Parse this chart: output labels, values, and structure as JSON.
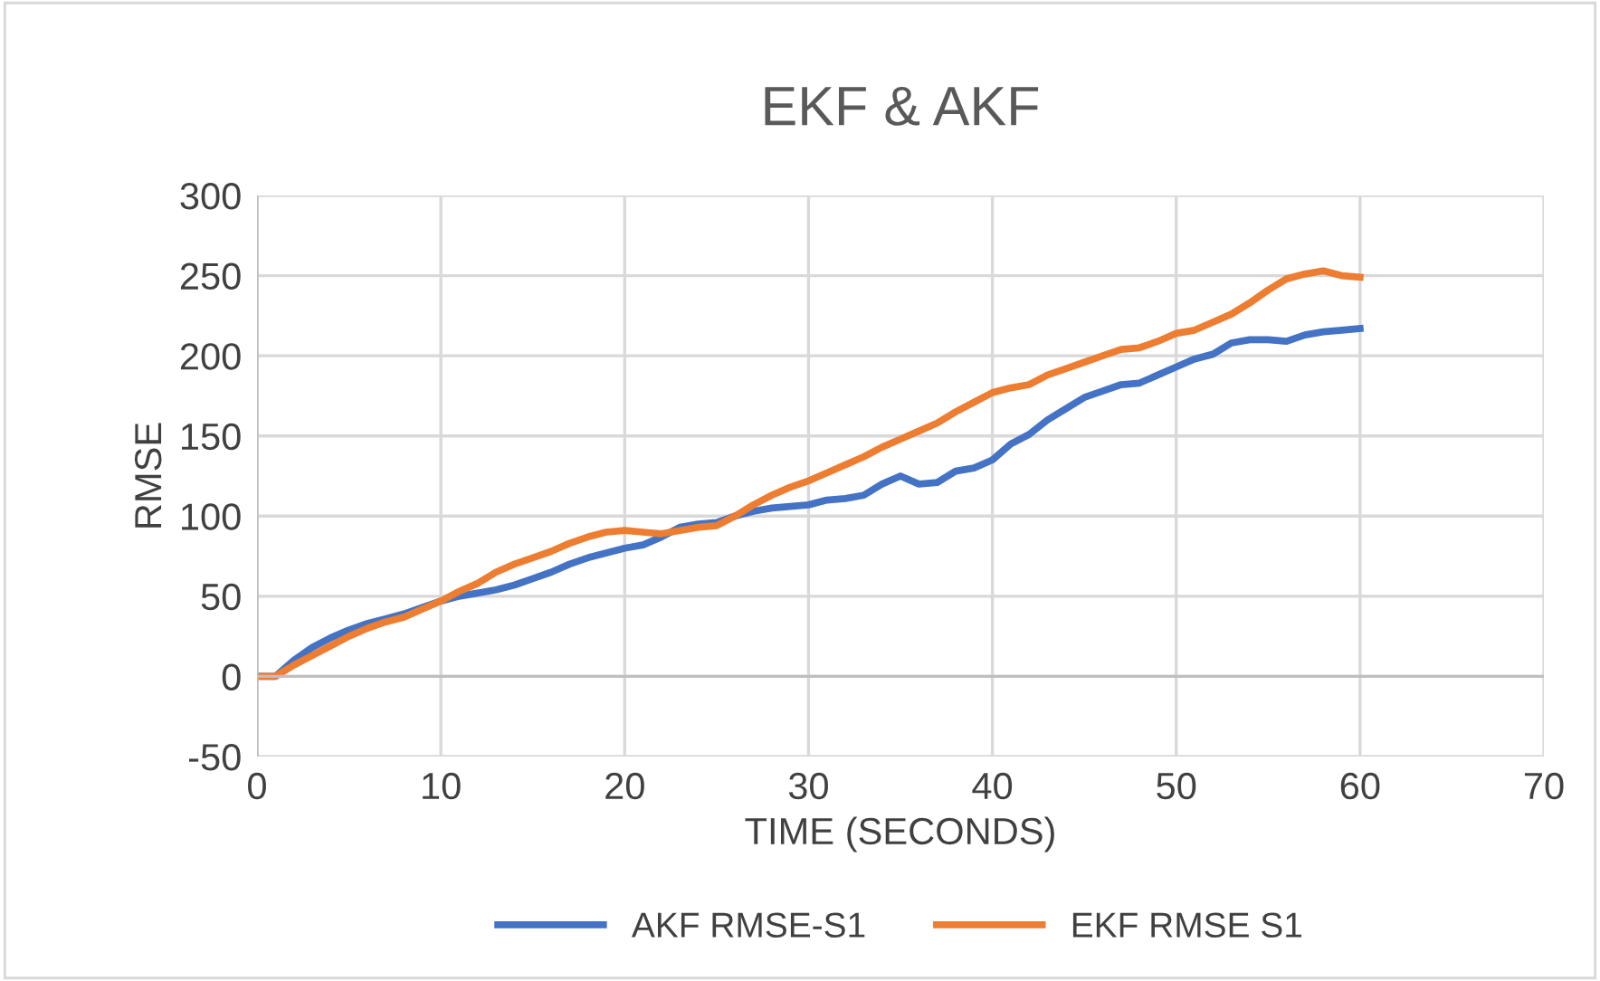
{
  "chart_data": {
    "type": "line",
    "title": "EKF & AKF",
    "xlabel": "TIME (SECONDS)",
    "ylabel": "RMSE",
    "x": [
      0,
      1,
      2,
      3,
      4,
      5,
      6,
      7,
      8,
      9,
      10,
      11,
      12,
      13,
      14,
      15,
      16,
      17,
      18,
      19,
      20,
      21,
      22,
      23,
      24,
      25,
      26,
      27,
      28,
      29,
      30,
      31,
      32,
      33,
      34,
      35,
      36,
      37,
      38,
      39,
      40,
      41,
      42,
      43,
      44,
      45,
      46,
      47,
      48,
      49,
      50,
      51,
      52,
      53,
      54,
      55,
      56,
      57,
      58,
      59,
      60
    ],
    "series": [
      {
        "name": "AKF RMSE-S1",
        "color": "#4472c4",
        "values": [
          0,
          0,
          10,
          18,
          24,
          29,
          33,
          36,
          39,
          43,
          47,
          50,
          52,
          54,
          57,
          61,
          65,
          70,
          74,
          77,
          80,
          82,
          87,
          93,
          95,
          96,
          100,
          103,
          105,
          106,
          107,
          110,
          111,
          113,
          120,
          125,
          120,
          121,
          128,
          130,
          135,
          145,
          151,
          160,
          167,
          174,
          178,
          182,
          183,
          188,
          193,
          198,
          201,
          208,
          210,
          210,
          209,
          213,
          215,
          216,
          217
        ]
      },
      {
        "name": "EKF RMSE S1",
        "color": "#ed7d31",
        "values": [
          0,
          0,
          7,
          13,
          19,
          25,
          30,
          34,
          37,
          42,
          47,
          53,
          58,
          65,
          70,
          74,
          78,
          83,
          87,
          90,
          91,
          90,
          89,
          91,
          93,
          94,
          100,
          107,
          113,
          118,
          122,
          127,
          132,
          137,
          143,
          148,
          153,
          158,
          165,
          171,
          177,
          180,
          182,
          188,
          192,
          196,
          200,
          204,
          205,
          209,
          214,
          216,
          221,
          226,
          233,
          241,
          248,
          251,
          253,
          250,
          249
        ]
      }
    ],
    "xlim": [
      0,
      70
    ],
    "xticks": [
      0,
      10,
      20,
      30,
      40,
      50,
      60,
      70
    ],
    "ylim": [
      -50,
      300
    ],
    "yticks": [
      -50,
      0,
      50,
      100,
      150,
      200,
      250,
      300
    ],
    "grid": true,
    "legend": "bottom",
    "marker": "none",
    "line_style": "solid"
  }
}
